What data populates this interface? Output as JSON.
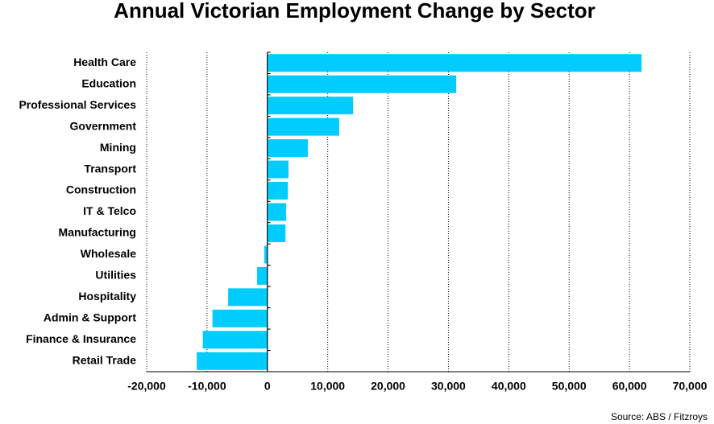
{
  "chart_data": {
    "type": "bar",
    "orientation": "horizontal",
    "title": "Annual Victorian Employment Change by Sector",
    "source": "Source: ABS / Fitzroys",
    "categories": [
      "Health Care",
      "Education",
      "Professional Services",
      "Government",
      "Mining",
      "Transport",
      "Construction",
      "IT & Telco",
      "Manufacturing",
      "Wholesale",
      "Utilities",
      "Hospitality",
      "Admin & Support",
      "Finance & Insurance",
      "Retail Trade"
    ],
    "values": [
      62000,
      31300,
      14200,
      11900,
      6700,
      3500,
      3400,
      3100,
      3000,
      -500,
      -1700,
      -6500,
      -9100,
      -10700,
      -11700
    ],
    "color": "#00ccff",
    "xlim": [
      -20000,
      70000
    ],
    "xticks": [
      {
        "value": -20000,
        "label": "-20,000"
      },
      {
        "value": -10000,
        "label": "-10,000"
      },
      0,
      {
        "value": 10000,
        "label": "10,000"
      },
      {
        "value": 20000,
        "label": "20,000"
      },
      {
        "value": 30000,
        "label": "30,000"
      },
      {
        "value": 40000,
        "label": "40,000"
      },
      {
        "value": 50000,
        "label": "50,000"
      },
      {
        "value": 60000,
        "label": "60,000"
      },
      {
        "value": 70000,
        "label": "70,000"
      }
    ],
    "grid": true
  }
}
